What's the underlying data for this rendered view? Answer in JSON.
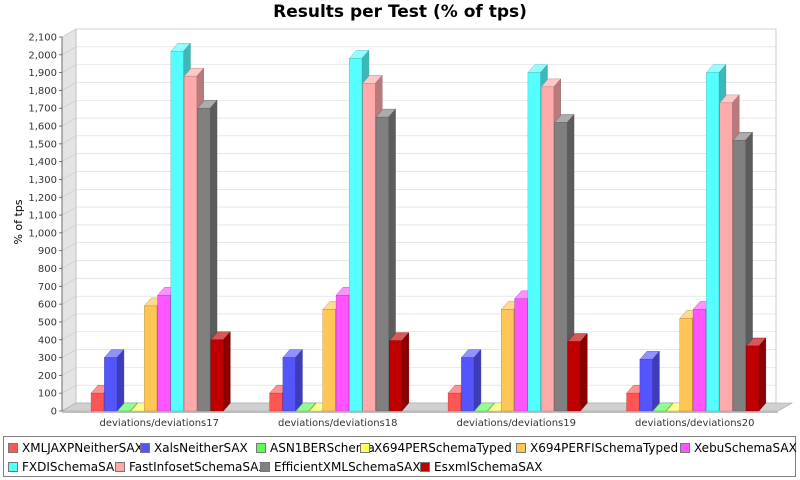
{
  "chart_data": {
    "type": "bar",
    "title": "Results per Test (% of tps)",
    "ylabel": "% of tps",
    "xlabel": "",
    "ylim": [
      0,
      2100
    ],
    "y_ticks": [
      0,
      100,
      200,
      300,
      400,
      500,
      600,
      700,
      800,
      900,
      1000,
      1100,
      1200,
      1300,
      1400,
      1500,
      1600,
      1700,
      1800,
      1900,
      2000,
      2100
    ],
    "y_tick_labels": [
      "0",
      "100",
      "200",
      "300",
      "400",
      "500",
      "600",
      "700",
      "800",
      "900",
      "1,000",
      "1,100",
      "1,200",
      "1,300",
      "1,400",
      "1,500",
      "1,600",
      "1,700",
      "1,800",
      "1,900",
      "2,000",
      "2,100"
    ],
    "grid": true,
    "legend_position": "bottom",
    "categories": [
      "deviations/deviations17",
      "deviations/deviations18",
      "deviations/deviations19",
      "deviations/deviations20"
    ],
    "series": [
      {
        "name": "XMLJAXPNeitherSAX",
        "color": "#ff5555",
        "values": [
          100,
          100,
          100,
          100
        ]
      },
      {
        "name": "XalsNeitherSAX",
        "color": "#5555ff",
        "values": [
          300,
          300,
          300,
          290
        ]
      },
      {
        "name": "ASN1BERSchema",
        "color": "#55ff55",
        "values": [
          0,
          0,
          0,
          0
        ]
      },
      {
        "name": "X694PERSchemaTyped",
        "color": "#ffff55",
        "values": [
          0,
          0,
          0,
          0
        ]
      },
      {
        "name": "X694PERFISchemaTyped",
        "color": "#ffc555",
        "values": [
          590,
          570,
          570,
          520
        ]
      },
      {
        "name": "XebuSchemaSAX",
        "color": "#ff55ff",
        "values": [
          650,
          650,
          630,
          570
        ]
      },
      {
        "name": "FXDISchemaSAX",
        "color": "#55ffff",
        "values": [
          2020,
          1980,
          1900,
          1900
        ]
      },
      {
        "name": "FastInfosetSchemaSAX",
        "color": "#ffaaaa",
        "values": [
          1880,
          1840,
          1820,
          1730
        ]
      },
      {
        "name": "EfficientXMLSchemaSAX",
        "color": "#808080",
        "values": [
          1700,
          1650,
          1620,
          1520
        ]
      },
      {
        "name": "EsxmlSchemaSAX",
        "color": "#c00000",
        "values": [
          400,
          395,
          390,
          365
        ]
      }
    ]
  }
}
